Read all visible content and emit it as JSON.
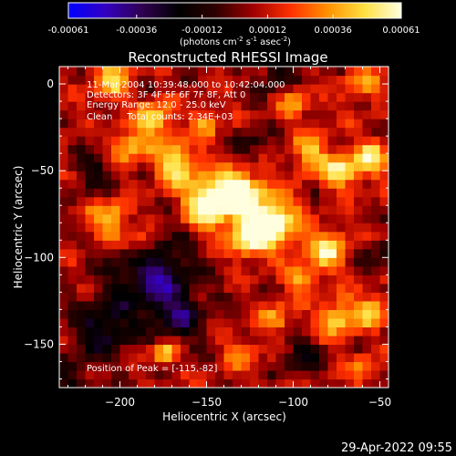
{
  "colorbar": {
    "tick_labels": [
      "-0.00061",
      "-0.00036",
      "-0.00012",
      "0.00012",
      "0.00036",
      "0.00061"
    ],
    "ticks": [
      -0.00061,
      -0.00036,
      -0.00012,
      0.00012,
      0.00036,
      0.00061
    ],
    "range": [
      -0.00061,
      0.00061
    ],
    "unit_base": "(photons cm",
    "unit_exp1": "-2",
    "unit_mid": " s",
    "unit_exp2": "-1",
    "unit_mid2": " asec",
    "unit_exp3": "-2",
    "unit_end": ")",
    "colormap": [
      "#0000ff",
      "#3300c0",
      "#300050",
      "#000000",
      "#300000",
      "#a00000",
      "#ff3000",
      "#ff9000",
      "#ffe040",
      "#ffffe0"
    ]
  },
  "chart_data": {
    "type": "heatmap",
    "title": "Reconstructed RHESSI Image",
    "xlabel": "Heliocentric X (arcsec)",
    "ylabel": "Heliocentric Y (arcsec)",
    "xlim": [
      -235,
      -45
    ],
    "ylim": [
      -175,
      10
    ],
    "xticks": [
      -200,
      -150,
      -100,
      -50
    ],
    "yticks": [
      -150,
      -100,
      -50,
      0
    ],
    "xtick_labels": [
      "−200",
      "−150",
      "−100",
      "−50"
    ],
    "ytick_labels": [
      "−150",
      "−100",
      "−50",
      "0"
    ],
    "annotations": [
      "11-Mar-2004 10:39:48.000 to 10:42:04.000",
      "Detectors: 3F 4F 5F 6F 7F 8F, Att 0",
      "Energy Range: 12.0 - 25.0 keV",
      "Clean     Total counts: 2.34E+03"
    ],
    "peak_label": "Position of Peak = [-115,-82]",
    "peak": [
      -115,
      -82
    ],
    "flux_range": [
      -0.00061,
      0.00061
    ],
    "bright_regions": [
      {
        "x": -148,
        "y": -68,
        "sigma": 10,
        "amp": 1.0
      },
      {
        "x": -130,
        "y": -62,
        "sigma": 9,
        "amp": 0.9
      },
      {
        "x": -112,
        "y": -80,
        "sigma": 10,
        "amp": 1.0
      },
      {
        "x": -125,
        "y": -88,
        "sigma": 8,
        "amp": 0.8
      },
      {
        "x": -168,
        "y": -45,
        "sigma": 9,
        "amp": 0.75
      },
      {
        "x": -180,
        "y": -20,
        "sigma": 7,
        "amp": 0.7
      },
      {
        "x": -195,
        "y": -35,
        "sigma": 7,
        "amp": 0.6
      },
      {
        "x": -205,
        "y": -78,
        "sigma": 8,
        "amp": 0.65
      },
      {
        "x": -188,
        "y": -92,
        "sigma": 6,
        "amp": 0.5
      },
      {
        "x": -205,
        "y": 2,
        "sigma": 8,
        "amp": 0.6
      },
      {
        "x": -150,
        "y": -22,
        "sigma": 6,
        "amp": 0.45
      },
      {
        "x": -90,
        "y": -40,
        "sigma": 8,
        "amp": 0.55
      },
      {
        "x": -72,
        "y": -50,
        "sigma": 7,
        "amp": 0.75
      },
      {
        "x": -55,
        "y": -42,
        "sigma": 7,
        "amp": 0.7
      },
      {
        "x": -80,
        "y": -95,
        "sigma": 8,
        "amp": 0.75
      },
      {
        "x": -95,
        "y": -112,
        "sigma": 6,
        "amp": 0.55
      },
      {
        "x": -75,
        "y": -135,
        "sigma": 8,
        "amp": 0.65
      },
      {
        "x": -55,
        "y": -130,
        "sigma": 7,
        "amp": 0.55
      },
      {
        "x": -110,
        "y": -135,
        "sigma": 6,
        "amp": 0.5
      },
      {
        "x": -130,
        "y": -155,
        "sigma": 7,
        "amp": 0.4
      },
      {
        "x": -175,
        "y": -155,
        "sigma": 5,
        "amp": 0.7
      },
      {
        "x": -60,
        "y": -165,
        "sigma": 6,
        "amp": 0.4
      },
      {
        "x": -100,
        "y": -10,
        "sigma": 7,
        "amp": 0.4
      },
      {
        "x": -60,
        "y": 0,
        "sigma": 7,
        "amp": 0.45
      }
    ],
    "dark_regions": [
      {
        "x": -180,
        "y": -110,
        "sigma": 16,
        "amp": 0.7
      },
      {
        "x": -210,
        "y": -140,
        "sigma": 12,
        "amp": 0.55
      },
      {
        "x": -165,
        "y": -135,
        "sigma": 10,
        "amp": 0.5
      },
      {
        "x": -215,
        "y": -50,
        "sigma": 8,
        "amp": 0.4
      },
      {
        "x": -110,
        "y": 5,
        "sigma": 8,
        "amp": 0.35
      },
      {
        "x": -125,
        "y": -35,
        "sigma": 7,
        "amp": 0.35
      },
      {
        "x": -95,
        "y": -155,
        "sigma": 8,
        "amp": 0.35
      },
      {
        "x": -50,
        "y": -100,
        "sigma": 7,
        "amp": 0.3
      },
      {
        "x": -230,
        "y": -170,
        "sigma": 8,
        "amp": 0.35
      }
    ]
  },
  "footer": {
    "timestamp": "29-Apr-2022 09:55"
  }
}
